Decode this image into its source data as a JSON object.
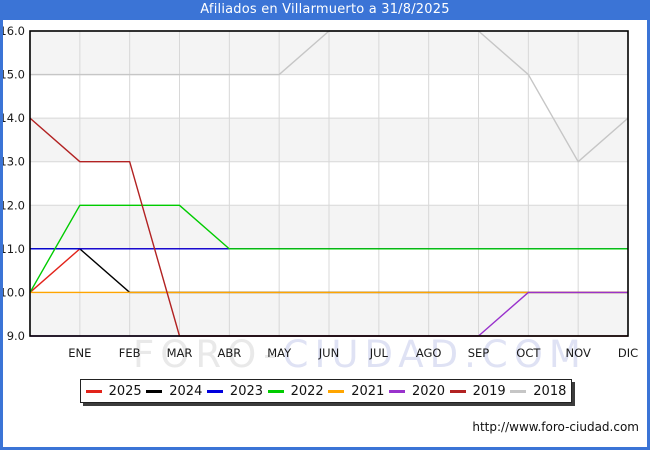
{
  "header": {
    "title": "Afiliados en Villarmuerto a 31/8/2025"
  },
  "watermark": {
    "left": "FORO-",
    "right": "CIUDAD.COM"
  },
  "footer": {
    "url": "http://www.foro-ciudad.com"
  },
  "colors": {
    "frame_blue": "#3b74d6",
    "plot_band_gray": "#f4f4f4",
    "gridline": "#d8d8d8",
    "plot_border": "#000000",
    "watermark_gray": "#e9e9e9",
    "watermark_blue": "#dfe2f4",
    "tick_text": "#1a1a1a"
  },
  "chart_data": {
    "type": "line",
    "title": "Afiliados en Villarmuerto a 31/8/2025",
    "x_labels": [
      "",
      "ENE",
      "FEB",
      "MAR",
      "ABR",
      "MAY",
      "JUN",
      "JUL",
      "AGO",
      "SEP",
      "OCT",
      "NOV",
      "DIC"
    ],
    "x_note": "first point is an unlabeled lead-in at the left axis edge",
    "ylim": [
      9,
      16
    ],
    "yticks": [
      "9.0",
      "10.0",
      "11.0",
      "12.0",
      "13.0",
      "14.0",
      "15.0",
      "16.0"
    ],
    "grid": true,
    "legend_position": "bottom",
    "series": [
      {
        "name": "2025",
        "color": "#e2231a",
        "values": [
          10,
          11,
          11,
          11,
          11,
          11,
          11,
          11,
          11,
          null,
          null,
          null,
          null
        ]
      },
      {
        "name": "2024",
        "color": "#000000",
        "values": [
          11,
          11,
          10,
          10,
          10,
          10,
          10,
          10,
          10,
          10,
          10,
          10,
          10
        ]
      },
      {
        "name": "2023",
        "color": "#0000dd",
        "values": [
          11,
          11,
          11,
          11,
          11,
          11,
          11,
          11,
          11,
          11,
          11,
          11,
          11
        ]
      },
      {
        "name": "2022",
        "color": "#00cc00",
        "values": [
          10,
          12,
          12,
          12,
          11,
          11,
          11,
          11,
          11,
          11,
          11,
          11,
          11
        ]
      },
      {
        "name": "2021",
        "color": "#ffa500",
        "values": [
          10,
          10,
          10,
          10,
          10,
          10,
          10,
          10,
          10,
          10,
          10,
          10,
          10
        ]
      },
      {
        "name": "2020",
        "color": "#9932cc",
        "values": [
          9,
          9,
          9,
          9,
          9,
          9,
          9,
          9,
          9,
          9,
          10,
          10,
          10
        ]
      },
      {
        "name": "2019",
        "color": "#b22222",
        "values": [
          14,
          13,
          13,
          9,
          9,
          9,
          9,
          9,
          9,
          9,
          9,
          9,
          9
        ]
      },
      {
        "name": "2018",
        "color": "#c6c6c6",
        "values": [
          15,
          15,
          15,
          15,
          15,
          15,
          16,
          16,
          16,
          16,
          15,
          13,
          14
        ]
      }
    ]
  }
}
